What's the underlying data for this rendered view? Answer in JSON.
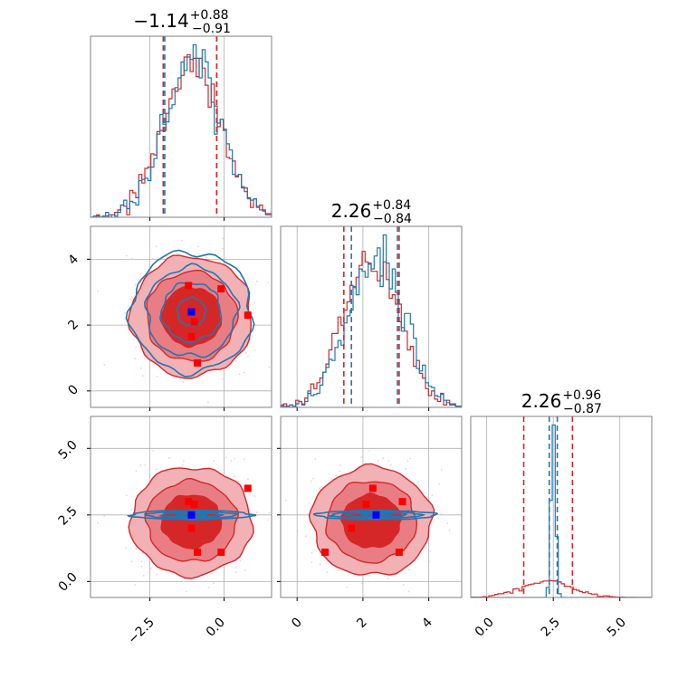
{
  "chart_data": {
    "type": "corner",
    "parameters": [
      {
        "ticks": [
          -2.5,
          0.0
        ],
        "tick_labels": [
          "−2.5",
          "0.0"
        ]
      },
      {
        "ticks": [
          0,
          2,
          4
        ],
        "tick_labels": [
          "0",
          "2",
          "4"
        ]
      },
      {
        "ticks": [
          0.0,
          2.5,
          5.0
        ],
        "tick_labels": [
          "0.0",
          "2.5",
          "5.0"
        ]
      }
    ],
    "axis_ranges": [
      [
        -4.5,
        1.6
      ],
      [
        -0.5,
        5.0
      ],
      [
        -0.6,
        6.2
      ]
    ],
    "grid": true,
    "titles": [
      {
        "value": "−1.14",
        "upper": "+0.88",
        "lower": "−0.91"
      },
      {
        "value": "2.26",
        "upper": "+0.84",
        "lower": "−0.84"
      },
      {
        "value": "2.26",
        "upper": "+0.96",
        "lower": "−0.87"
      }
    ],
    "colors": {
      "blue": "#1f77b4",
      "red": "#d62728"
    },
    "series": [
      {
        "color": "blue",
        "means": [
          -1.1,
          2.4,
          2.5
        ],
        "sigmas": [
          0.95,
          0.85,
          0.08
        ],
        "quantiles": [
          [
            -2.0,
            -0.25
          ],
          [
            1.65,
            3.05
          ],
          [
            2.35,
            2.65
          ]
        ]
      },
      {
        "color": "red",
        "means": [
          -1.1,
          2.26,
          2.26
        ],
        "sigmas": [
          0.95,
          0.85,
          0.95
        ],
        "quantiles": [
          [
            -2.05,
            -0.25
          ],
          [
            1.42,
            3.1
          ],
          [
            1.39,
            3.22
          ]
        ]
      }
    ],
    "markers": {
      "blue": [
        [
          -1.1,
          2.4,
          2.5
        ]
      ],
      "red": [
        [
          -1.2,
          3.2,
          3.0
        ],
        [
          -1.0,
          2.1,
          2.9
        ],
        [
          -1.1,
          1.65,
          2.0
        ],
        [
          -0.9,
          0.85,
          1.1
        ],
        [
          -0.1,
          3.1,
          1.1
        ],
        [
          0.8,
          2.3,
          3.5
        ]
      ]
    }
  }
}
